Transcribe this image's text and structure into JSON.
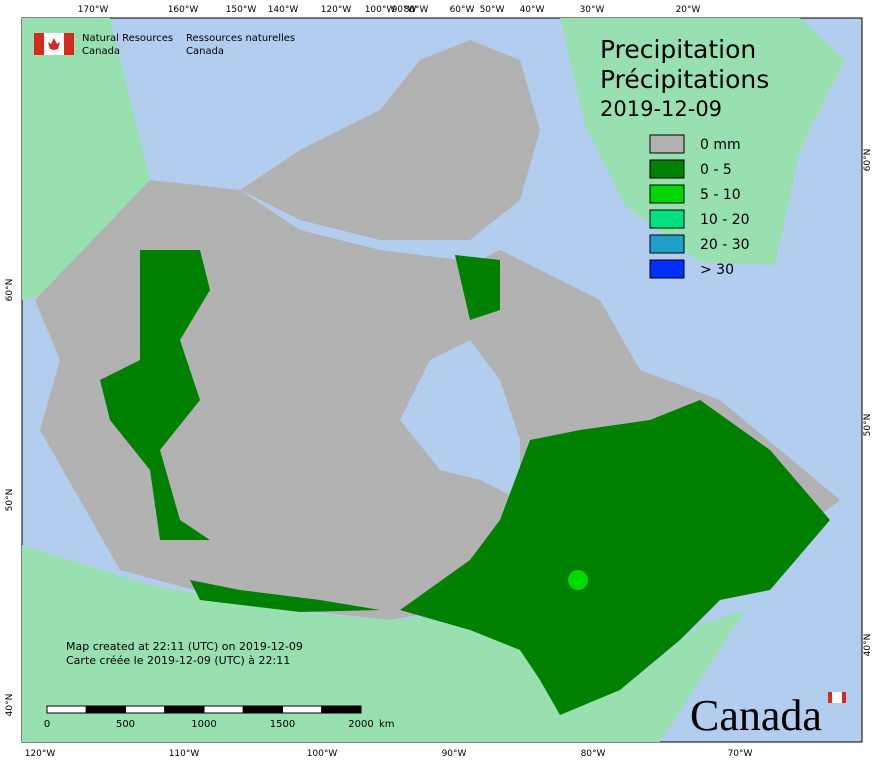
{
  "header": {
    "agency_en": [
      "Natural Resources",
      "Canada"
    ],
    "agency_fr": [
      "Ressources naturelles",
      "Canada"
    ]
  },
  "title": {
    "lines": [
      "Precipitation",
      "Précipitations"
    ],
    "date": "2019-12-09"
  },
  "legend": [
    {
      "label": "0 mm",
      "color": "#b2b2b2"
    },
    {
      "label": "0 - 5",
      "color": "#008000"
    },
    {
      "label": "5 - 10",
      "color": "#00d800"
    },
    {
      "label": "10 - 20",
      "color": "#00e080"
    },
    {
      "label": "20 - 30",
      "color": "#20a0c8"
    },
    {
      "label": "> 30",
      "color": "#0030ff"
    }
  ],
  "graticule": {
    "top": [
      "170°W",
      "160°W",
      "150°W",
      "140°W",
      "120°W",
      "100°W",
      "90°W",
      "80°W",
      "60°W",
      "50°W",
      "40°W",
      "30°W",
      "20°W"
    ],
    "bottom": [
      "120°W",
      "110°W",
      "100°W",
      "90°W",
      "80°W",
      "70°W"
    ],
    "left": [
      "60°N",
      "50°N",
      "40°N"
    ],
    "right": [
      "60°N",
      "50°N",
      "40°N"
    ]
  },
  "notes": [
    "Map created at 22:11 (UTC) on 2019-12-09",
    "Carte créée le 2019-12-09 (UTC) à 22:11"
  ],
  "scale_bar": {
    "labels": [
      "0",
      "500",
      "1000",
      "1500",
      "2000"
    ],
    "unit": "km"
  },
  "wordmark": "Canada"
}
